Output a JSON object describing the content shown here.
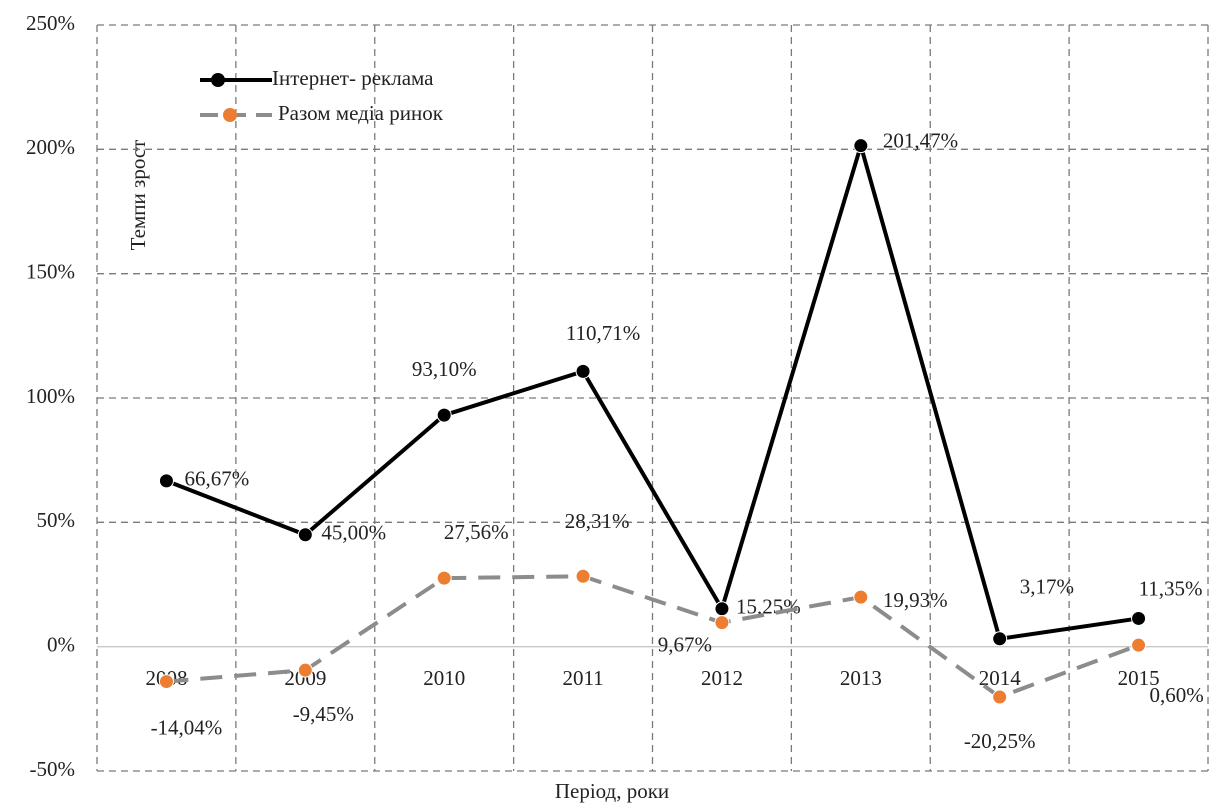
{
  "chart_data": {
    "type": "line",
    "y_label": "Темпи зрост",
    "x_label": "Період, роки",
    "categories": [
      "2008",
      "2009",
      "2010",
      "2011",
      "2012",
      "2013",
      "2014",
      "2015"
    ],
    "series": [
      {
        "name": "Інтернет- реклама",
        "color": "#000000",
        "marker_color": "#000000",
        "dashed": false,
        "values": [
          66.67,
          45.0,
          93.1,
          110.71,
          15.25,
          201.47,
          3.17,
          11.35
        ],
        "value_labels": [
          "66,67%",
          "45,00%",
          "93,10%",
          "110,71%",
          "15,25%",
          "201,47%",
          "3,17%",
          "11,35%"
        ]
      },
      {
        "name": "Разом медіа ринок",
        "color": "#8c8c8c",
        "marker_color": "#ed7d31",
        "dashed": true,
        "values": [
          -14.04,
          -9.45,
          27.56,
          28.31,
          9.67,
          19.93,
          -20.25,
          0.6
        ],
        "value_labels": [
          "-14,04%",
          "-9,45%",
          "27,56%",
          "28,31%",
          "9,67%",
          "19,93%",
          "-20,25%",
          "0,60%"
        ]
      }
    ],
    "ylim": [
      -50,
      250
    ],
    "yticks": [
      {
        "value": -50,
        "label": "-50%"
      },
      {
        "value": 0,
        "label": "0%"
      },
      {
        "value": 50,
        "label": "50%"
      },
      {
        "value": 100,
        "label": "100%"
      },
      {
        "value": 150,
        "label": "150%"
      },
      {
        "value": 200,
        "label": "200%"
      },
      {
        "value": 250,
        "label": "250%"
      }
    ],
    "grid": true,
    "legend": "top-left"
  }
}
